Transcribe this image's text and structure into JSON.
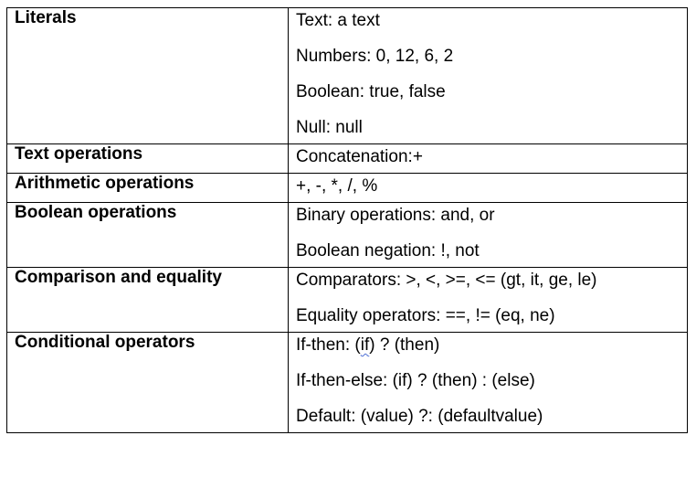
{
  "rows": [
    {
      "label": "Literals",
      "values": [
        "Text: a text",
        "Numbers: 0, 12, 6, 2",
        "Boolean: true, false",
        "Null: null"
      ]
    },
    {
      "label": "Text operations",
      "values": [
        "Concatenation:+"
      ]
    },
    {
      "label": "Arithmetic operations",
      "values": [
        "+, -, *, /, %"
      ]
    },
    {
      "label": "Boolean operations",
      "values": [
        "Binary operations: and, or",
        "Boolean negation: !, not"
      ]
    },
    {
      "label": "Comparison and equality",
      "values": [
        "Comparators: >, <, >=, <= (gt, it, ge, le)",
        "Equality operators: ==, != (eq, ne)"
      ]
    },
    {
      "label": "Conditional operators",
      "values": [
        "If-then: (if) ? (then)",
        "If-then-else: (if) ? (then) : (else)",
        "Default: (value) ?: (defaultvalue)"
      ]
    }
  ],
  "spellcheck_word": "if"
}
